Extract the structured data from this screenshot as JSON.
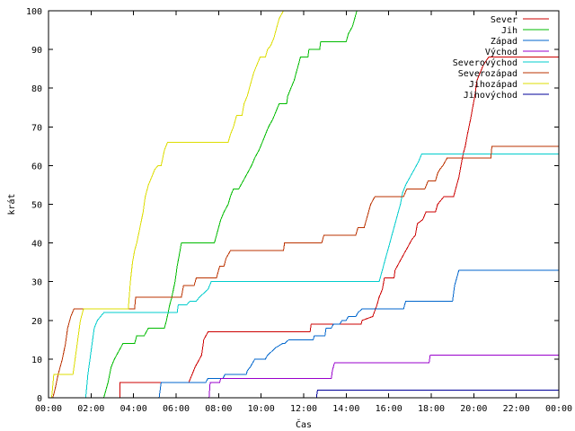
{
  "chart_data": {
    "type": "line",
    "title": "",
    "xlabel": "Čas",
    "ylabel": "krát",
    "xlim": [
      0,
      24
    ],
    "ylim": [
      0,
      100
    ],
    "x_ticks": [
      0,
      2,
      4,
      6,
      8,
      10,
      12,
      14,
      16,
      18,
      20,
      22,
      24
    ],
    "x_tick_labels": [
      "00:00",
      "02:00",
      "04:00",
      "06:00",
      "08:00",
      "10:00",
      "12:00",
      "14:00",
      "16:00",
      "18:00",
      "20:00",
      "22:00",
      "00:00"
    ],
    "y_ticks": [
      0,
      10,
      20,
      30,
      40,
      50,
      60,
      70,
      80,
      90,
      100
    ],
    "y_tick_labels": [
      "0",
      "10",
      "20",
      "30",
      "40",
      "50",
      "60",
      "70",
      "80",
      "90",
      "100"
    ],
    "grid": false,
    "legend_position": "top-right",
    "series": [
      {
        "name": "Sever",
        "color": "#cc0000",
        "points": [
          [
            0,
            0
          ],
          [
            3.35,
            0
          ],
          [
            3.35,
            4
          ],
          [
            6.6,
            4
          ],
          [
            6.75,
            6
          ],
          [
            6.9,
            8
          ],
          [
            7.0,
            9
          ],
          [
            7.2,
            11
          ],
          [
            7.3,
            15
          ],
          [
            7.5,
            17
          ],
          [
            12.3,
            17
          ],
          [
            12.35,
            19
          ],
          [
            14.7,
            19
          ],
          [
            14.75,
            20
          ],
          [
            15.25,
            21
          ],
          [
            15.45,
            24
          ],
          [
            15.55,
            26
          ],
          [
            15.7,
            28
          ],
          [
            15.8,
            31
          ],
          [
            16.25,
            31
          ],
          [
            16.3,
            33
          ],
          [
            16.5,
            35
          ],
          [
            16.7,
            37
          ],
          [
            16.9,
            39
          ],
          [
            17.1,
            41
          ],
          [
            17.25,
            42
          ],
          [
            17.35,
            45
          ],
          [
            17.6,
            46
          ],
          [
            17.75,
            48
          ],
          [
            18.2,
            48
          ],
          [
            18.3,
            50
          ],
          [
            18.6,
            52
          ],
          [
            19.05,
            52
          ],
          [
            19.15,
            54
          ],
          [
            19.3,
            57
          ],
          [
            19.4,
            60
          ],
          [
            19.5,
            63
          ],
          [
            19.6,
            65
          ],
          [
            19.7,
            68
          ],
          [
            19.85,
            72
          ],
          [
            19.95,
            75
          ],
          [
            20.05,
            78
          ],
          [
            20.15,
            82
          ],
          [
            20.3,
            84
          ],
          [
            20.45,
            86
          ],
          [
            20.7,
            88
          ],
          [
            24,
            88
          ]
        ]
      },
      {
        "name": "Jih",
        "color": "#00bb00",
        "points": [
          [
            0,
            0
          ],
          [
            2.6,
            0
          ],
          [
            2.8,
            4
          ],
          [
            2.95,
            8
          ],
          [
            3.1,
            10
          ],
          [
            3.3,
            12
          ],
          [
            3.5,
            14
          ],
          [
            4.05,
            14
          ],
          [
            4.15,
            16
          ],
          [
            4.5,
            16
          ],
          [
            4.7,
            18
          ],
          [
            5.45,
            18
          ],
          [
            5.55,
            20
          ],
          [
            5.7,
            24
          ],
          [
            5.8,
            26
          ],
          [
            5.95,
            30
          ],
          [
            6.05,
            34
          ],
          [
            6.15,
            37
          ],
          [
            6.25,
            40
          ],
          [
            7.8,
            40
          ],
          [
            7.9,
            42
          ],
          [
            8.0,
            44
          ],
          [
            8.1,
            46
          ],
          [
            8.25,
            48
          ],
          [
            8.45,
            50
          ],
          [
            8.55,
            52
          ],
          [
            8.7,
            54
          ],
          [
            8.95,
            54
          ],
          [
            9.15,
            56
          ],
          [
            9.35,
            58
          ],
          [
            9.55,
            60
          ],
          [
            9.7,
            62
          ],
          [
            9.9,
            64
          ],
          [
            10.05,
            66
          ],
          [
            10.2,
            68
          ],
          [
            10.35,
            70
          ],
          [
            10.55,
            72
          ],
          [
            10.7,
            74
          ],
          [
            10.85,
            76
          ],
          [
            11.2,
            76
          ],
          [
            11.25,
            78
          ],
          [
            11.4,
            80
          ],
          [
            11.55,
            82
          ],
          [
            11.65,
            84
          ],
          [
            11.75,
            86
          ],
          [
            11.85,
            88
          ],
          [
            12.2,
            88
          ],
          [
            12.25,
            90
          ],
          [
            12.75,
            90
          ],
          [
            12.8,
            92
          ],
          [
            14.0,
            92
          ],
          [
            14.1,
            94
          ],
          [
            14.3,
            96
          ],
          [
            14.4,
            98
          ],
          [
            14.5,
            100
          ],
          [
            14.8,
            100
          ]
        ]
      },
      {
        "name": "Západ",
        "color": "#0066cc",
        "points": [
          [
            0,
            0
          ],
          [
            5.2,
            0
          ],
          [
            5.3,
            4
          ],
          [
            7.4,
            4
          ],
          [
            7.5,
            5
          ],
          [
            8.2,
            5
          ],
          [
            8.3,
            6
          ],
          [
            9.3,
            6
          ],
          [
            9.35,
            7
          ],
          [
            9.5,
            8
          ],
          [
            9.7,
            10
          ],
          [
            10.2,
            10
          ],
          [
            10.3,
            11
          ],
          [
            10.5,
            12
          ],
          [
            10.7,
            13
          ],
          [
            11.0,
            14
          ],
          [
            11.1,
            14
          ],
          [
            11.3,
            15
          ],
          [
            12.45,
            15
          ],
          [
            12.5,
            16
          ],
          [
            13.0,
            16
          ],
          [
            13.05,
            18
          ],
          [
            13.3,
            18
          ],
          [
            13.4,
            19
          ],
          [
            13.7,
            19
          ],
          [
            13.8,
            20
          ],
          [
            14.0,
            20
          ],
          [
            14.1,
            21
          ],
          [
            14.45,
            21
          ],
          [
            14.55,
            22
          ],
          [
            14.75,
            23
          ],
          [
            16.7,
            23
          ],
          [
            16.8,
            25
          ],
          [
            19.0,
            25
          ],
          [
            19.1,
            29
          ],
          [
            19.2,
            31
          ],
          [
            19.3,
            33
          ],
          [
            24,
            33
          ]
        ]
      },
      {
        "name": "Východ",
        "color": "#9900cc",
        "points": [
          [
            0,
            0
          ],
          [
            7.55,
            0
          ],
          [
            7.6,
            4
          ],
          [
            8.05,
            4
          ],
          [
            8.1,
            5
          ],
          [
            13.3,
            5
          ],
          [
            13.35,
            7
          ],
          [
            13.45,
            9
          ],
          [
            17.9,
            9
          ],
          [
            17.95,
            11
          ],
          [
            24,
            11
          ]
        ]
      },
      {
        "name": "Severovýchod",
        "color": "#00cccc",
        "points": [
          [
            0,
            0
          ],
          [
            1.75,
            0
          ],
          [
            1.85,
            6
          ],
          [
            1.95,
            10
          ],
          [
            2.05,
            14
          ],
          [
            2.15,
            18
          ],
          [
            2.3,
            20
          ],
          [
            2.6,
            22
          ],
          [
            6.05,
            22
          ],
          [
            6.1,
            24
          ],
          [
            6.5,
            24
          ],
          [
            6.65,
            25
          ],
          [
            6.95,
            25
          ],
          [
            7.1,
            26
          ],
          [
            7.5,
            28
          ],
          [
            7.65,
            30
          ],
          [
            15.55,
            30
          ],
          [
            15.7,
            33
          ],
          [
            15.85,
            36
          ],
          [
            15.95,
            38
          ],
          [
            16.05,
            40
          ],
          [
            16.15,
            42
          ],
          [
            16.3,
            45
          ],
          [
            16.45,
            48
          ],
          [
            16.55,
            50
          ],
          [
            16.65,
            53
          ],
          [
            16.8,
            55
          ],
          [
            17.0,
            57
          ],
          [
            17.2,
            59
          ],
          [
            17.4,
            61
          ],
          [
            17.55,
            63
          ],
          [
            24,
            63
          ]
        ]
      },
      {
        "name": "Severozápad",
        "color": "#bb3300",
        "points": [
          [
            0,
            0
          ],
          [
            0.2,
            0
          ],
          [
            0.3,
            2
          ],
          [
            0.45,
            6
          ],
          [
            0.65,
            10
          ],
          [
            0.8,
            14
          ],
          [
            0.9,
            18
          ],
          [
            1.05,
            21
          ],
          [
            1.2,
            23
          ],
          [
            4.05,
            23
          ],
          [
            4.1,
            26
          ],
          [
            6.25,
            26
          ],
          [
            6.35,
            29
          ],
          [
            6.85,
            29
          ],
          [
            6.95,
            31
          ],
          [
            7.9,
            31
          ],
          [
            8.05,
            34
          ],
          [
            8.25,
            34
          ],
          [
            8.35,
            36
          ],
          [
            8.55,
            38
          ],
          [
            11.05,
            38
          ],
          [
            11.1,
            40
          ],
          [
            12.85,
            40
          ],
          [
            12.95,
            42
          ],
          [
            14.45,
            42
          ],
          [
            14.55,
            44
          ],
          [
            14.85,
            44
          ],
          [
            14.95,
            46
          ],
          [
            15.05,
            48
          ],
          [
            15.15,
            50
          ],
          [
            15.35,
            52
          ],
          [
            16.7,
            52
          ],
          [
            16.85,
            54
          ],
          [
            17.7,
            54
          ],
          [
            17.85,
            56
          ],
          [
            18.2,
            56
          ],
          [
            18.3,
            58
          ],
          [
            18.4,
            59
          ],
          [
            18.55,
            60
          ],
          [
            18.75,
            62
          ],
          [
            20.8,
            62
          ],
          [
            20.85,
            65
          ],
          [
            24,
            65
          ]
        ]
      },
      {
        "name": "Jihozápad",
        "color": "#dddd00",
        "points": [
          [
            0,
            0
          ],
          [
            0.15,
            0
          ],
          [
            0.25,
            6
          ],
          [
            1.15,
            6
          ],
          [
            1.3,
            12
          ],
          [
            1.4,
            16
          ],
          [
            1.5,
            20
          ],
          [
            1.65,
            23
          ],
          [
            3.75,
            23
          ],
          [
            3.85,
            30
          ],
          [
            3.95,
            35
          ],
          [
            4.05,
            38
          ],
          [
            4.15,
            40
          ],
          [
            4.3,
            44
          ],
          [
            4.45,
            48
          ],
          [
            4.55,
            52
          ],
          [
            4.7,
            55
          ],
          [
            4.85,
            57
          ],
          [
            5.0,
            59
          ],
          [
            5.15,
            60
          ],
          [
            5.3,
            60
          ],
          [
            5.45,
            64
          ],
          [
            5.6,
            66
          ],
          [
            8.45,
            66
          ],
          [
            8.55,
            68
          ],
          [
            8.7,
            70
          ],
          [
            8.85,
            73
          ],
          [
            9.1,
            73
          ],
          [
            9.2,
            76
          ],
          [
            9.35,
            78
          ],
          [
            9.45,
            80
          ],
          [
            9.55,
            82
          ],
          [
            9.65,
            84
          ],
          [
            9.8,
            86
          ],
          [
            9.95,
            88
          ],
          [
            10.2,
            88
          ],
          [
            10.3,
            90
          ],
          [
            10.45,
            91
          ],
          [
            10.6,
            93
          ],
          [
            10.75,
            96
          ],
          [
            10.85,
            98
          ],
          [
            11.05,
            100
          ],
          [
            11.2,
            100
          ]
        ]
      },
      {
        "name": "Jihovýchod",
        "color": "#000099",
        "points": [
          [
            0,
            0
          ],
          [
            12.6,
            0
          ],
          [
            12.65,
            2
          ],
          [
            24,
            2
          ]
        ]
      }
    ]
  }
}
